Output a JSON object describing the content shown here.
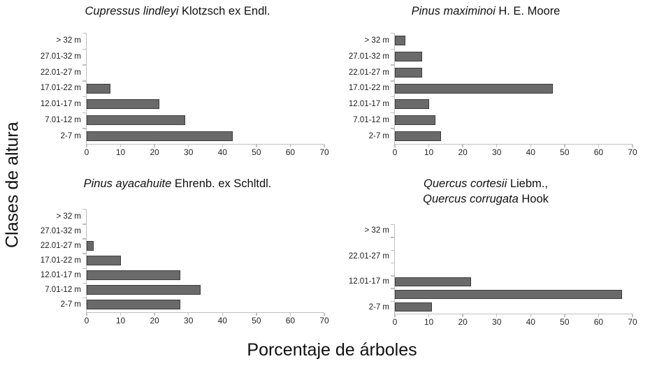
{
  "figure": {
    "ylabel": "Clases de altura",
    "xlabel": "Porcentaje de árboles"
  },
  "colors": {
    "bar_fill": "#6a6a6a",
    "bar_border": "#3d3d3d",
    "axis": "#bfbfbf",
    "text": "#1a1a1a"
  },
  "chart_data": [
    {
      "type": "bar",
      "orientation": "horizontal",
      "title_lines": [
        [
          {
            "text": "Cupressus lindleyi",
            "italic": true
          },
          {
            "text": " Klotzsch ex Endl.",
            "italic": false
          }
        ]
      ],
      "categories": [
        "> 32 m",
        "27.01-32 m",
        "22.01-27 m",
        "17.01-22 m",
        "12.01-17 m",
        "7.01-12 m",
        "2-7 m"
      ],
      "values": [
        0,
        0,
        0,
        7,
        21.5,
        29,
        43
      ],
      "xlim": [
        0,
        70
      ],
      "xticks": [
        0,
        10,
        20,
        30,
        40,
        50,
        60,
        70
      ],
      "grid": false,
      "legend": null
    },
    {
      "type": "bar",
      "orientation": "horizontal",
      "title_lines": [
        [
          {
            "text": "Pinus maximinoi",
            "italic": true
          },
          {
            "text": " H. E. Moore",
            "italic": false
          }
        ]
      ],
      "categories": [
        "> 32 m",
        "27.01-32 m",
        "22.01-27 m",
        "17.01-22 m",
        "12.01-17 m",
        "7.01-12 m",
        "2-7 m"
      ],
      "values": [
        3,
        8,
        8,
        46.5,
        10,
        12,
        13.5
      ],
      "xlim": [
        0,
        70
      ],
      "xticks": [
        0,
        10,
        20,
        30,
        40,
        50,
        60,
        70
      ],
      "grid": false,
      "legend": null
    },
    {
      "type": "bar",
      "orientation": "horizontal",
      "title_lines": [
        [
          {
            "text": "Pinus ayacahuite",
            "italic": true
          },
          {
            "text": " Ehrenb. ex Schltdl.",
            "italic": false
          }
        ]
      ],
      "categories": [
        "> 32 m",
        "27.01-32 m",
        "22.01-27 m",
        "17.01-22 m",
        "12.01-17 m",
        "7.01-12 m",
        "2-7 m"
      ],
      "values": [
        0,
        0,
        2,
        10,
        27.5,
        33.5,
        27.5
      ],
      "xlim": [
        0,
        70
      ],
      "xticks": [
        0,
        10,
        20,
        30,
        40,
        50,
        60,
        70
      ],
      "grid": false,
      "legend": null
    },
    {
      "type": "bar",
      "orientation": "horizontal",
      "title_lines": [
        [
          {
            "text": "Quercus cortesii",
            "italic": true
          },
          {
            "text": " Liebm.,",
            "italic": false
          }
        ],
        [
          {
            "text": "Quercus corrugata",
            "italic": true
          },
          {
            "text": " Hook",
            "italic": false
          }
        ]
      ],
      "categories": [
        "> 32 m",
        "",
        "22.01-27 m",
        "",
        "12.01-17 m",
        "",
        "2-7 m"
      ],
      "values": [
        0,
        0,
        0,
        0,
        22.5,
        67,
        11
      ],
      "xlim": [
        0,
        70
      ],
      "xticks": [
        0,
        10,
        20,
        30,
        40,
        50,
        60,
        70
      ],
      "grid": false,
      "legend": null
    }
  ]
}
